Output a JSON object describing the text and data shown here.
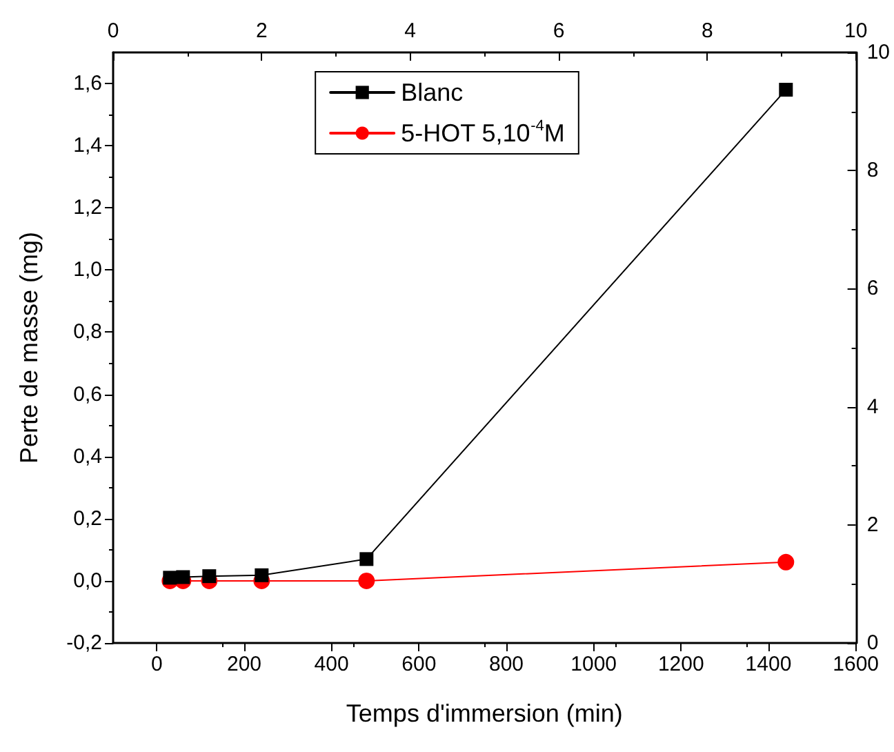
{
  "chart_data": {
    "type": "line",
    "xlabel": "Temps d'immersion (min)",
    "ylabel": "Perte de masse (mg)",
    "x": [
      30,
      60,
      120,
      240,
      480,
      1440
    ],
    "series": [
      {
        "name": "Blanc",
        "color": "#000000",
        "marker": "square",
        "values": [
          0.01,
          0.012,
          0.015,
          0.018,
          0.07,
          1.58
        ]
      },
      {
        "name": "5-HOT 5,10$^{-4}$M",
        "color": "#ff0000",
        "marker": "circle",
        "values": [
          0,
          0,
          0,
          0,
          0,
          0.06
        ]
      }
    ],
    "xlim": [
      -100,
      1600
    ],
    "xticks": [
      0,
      200,
      400,
      600,
      800,
      1000,
      1200,
      1400,
      1600
    ],
    "ylim": [
      -0.2,
      1.7
    ],
    "yticks": [
      {
        "value": -0.2,
        "label": "-0,2"
      },
      {
        "value": 0,
        "label": "0,0"
      },
      {
        "value": 0.2,
        "label": "0,2"
      },
      {
        "value": 0.4,
        "label": "0,4"
      },
      {
        "value": 0.6,
        "label": "0,6"
      },
      {
        "value": 0.8,
        "label": "0,8"
      },
      {
        "value": 1,
        "label": "1,0"
      },
      {
        "value": 1.2,
        "label": "1,2"
      },
      {
        "value": 1.4,
        "label": "1,4"
      },
      {
        "value": 1.6,
        "label": "1,6"
      }
    ],
    "x2lim": [
      0,
      10
    ],
    "x2ticks": [
      0,
      2,
      4,
      6,
      8,
      10
    ],
    "y2lim": [
      0,
      10
    ],
    "y2ticks": [
      0,
      2,
      4,
      6,
      8,
      10
    ],
    "grid": false,
    "legend": "top",
    "line_style": "solid"
  }
}
